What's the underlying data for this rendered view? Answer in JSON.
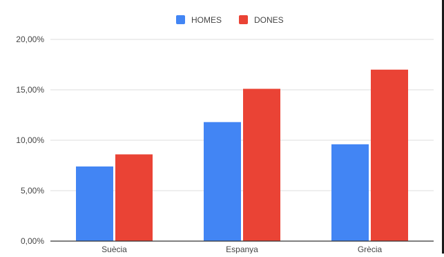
{
  "chart_data": {
    "type": "bar",
    "title": "",
    "xlabel": "",
    "ylabel": "",
    "categories": [
      "Suècia",
      "Espanya",
      "Grècia"
    ],
    "series": [
      {
        "name": "HOMES",
        "values": [
          7.4,
          11.8,
          9.6
        ],
        "color": "#4285f4"
      },
      {
        "name": "DONES",
        "values": [
          8.6,
          15.1,
          17.0
        ],
        "color": "#ea4335"
      }
    ],
    "ylim": [
      0,
      20
    ],
    "yticks": [
      {
        "value": 0,
        "label": "0,00%"
      },
      {
        "value": 5,
        "label": "5,00%"
      },
      {
        "value": 10,
        "label": "10,00%"
      },
      {
        "value": 15,
        "label": "15,00%"
      },
      {
        "value": 20,
        "label": "20,00%"
      }
    ],
    "grid": true,
    "legend_position": "top-center",
    "gridline_color": "#dcdcdc",
    "axis_color": "#333333",
    "text_color": "#444444"
  }
}
